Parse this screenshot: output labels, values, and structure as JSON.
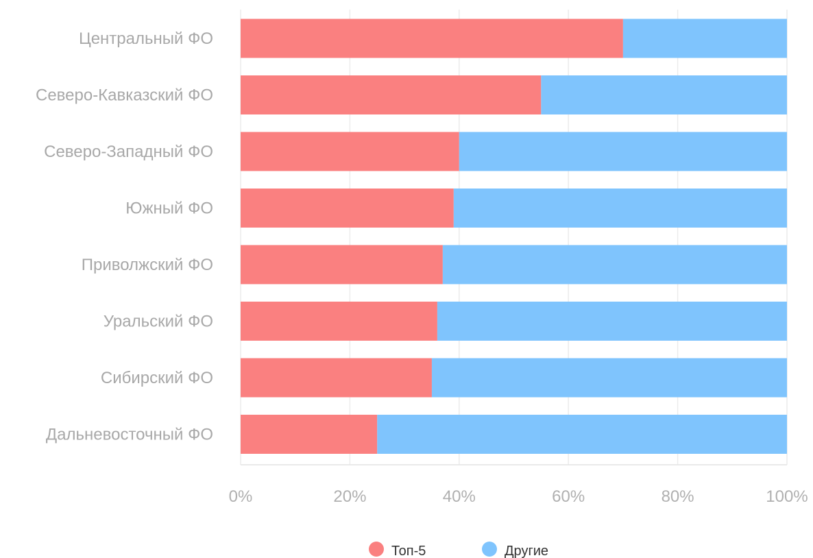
{
  "chart_data": {
    "type": "bar",
    "orientation": "horizontal",
    "stacked": true,
    "categories": [
      "Центральный ФО",
      "Северо-Кавказский ФО",
      "Северо-Западный ФО",
      "Южный ФО",
      "Приволжский ФО",
      "Уральский ФО",
      "Сибирский ФО",
      "Дальневосточный ФО"
    ],
    "series": [
      {
        "name": "Топ-5",
        "color": "#fa8080",
        "values": [
          70,
          55,
          40,
          39,
          37,
          36,
          35,
          25
        ]
      },
      {
        "name": "Другие",
        "color": "#7fc4fd",
        "values": [
          30,
          45,
          60,
          61,
          63,
          64,
          65,
          75
        ]
      }
    ],
    "xlim": [
      0,
      100
    ],
    "x_ticks": [
      "0%",
      "20%",
      "40%",
      "60%",
      "80%",
      "100%"
    ],
    "grid": true,
    "legend": "bottom-center"
  }
}
